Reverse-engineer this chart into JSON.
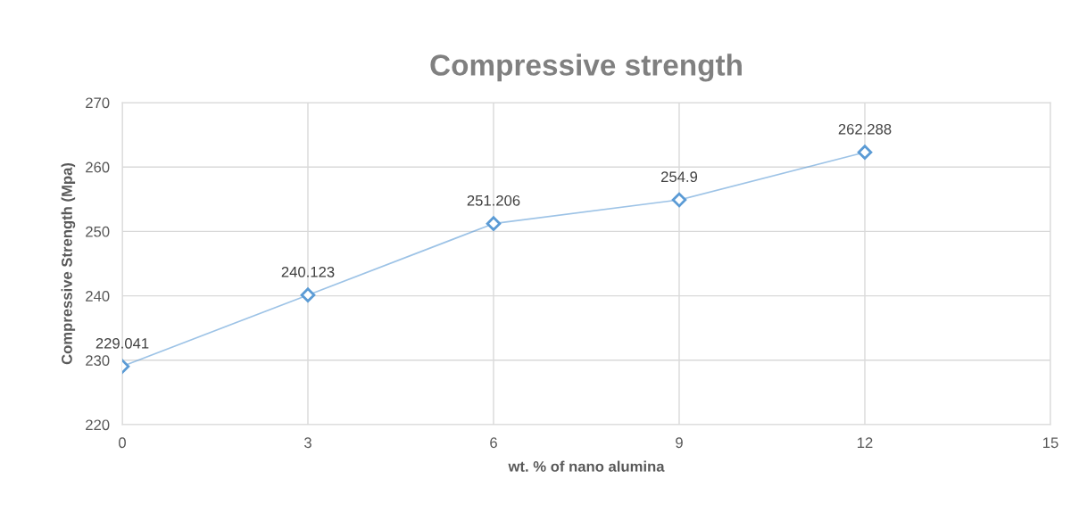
{
  "chart_data": {
    "type": "line",
    "title": "Compressive strength",
    "xlabel": "wt. % of nano alumina",
    "ylabel": "Compressive Strength (Mpa)",
    "x": [
      0,
      3,
      6,
      9,
      12
    ],
    "series": [
      {
        "color": "#5b9bd5",
        "values": [
          229.041,
          240.123,
          251.206,
          254.9,
          262.288
        ]
      }
    ],
    "xlim": [
      0,
      15
    ],
    "xticks": [
      0,
      3,
      6,
      9,
      12,
      15
    ],
    "ylim": [
      220,
      270
    ],
    "yticks": [
      220,
      230,
      240,
      250,
      260,
      270
    ],
    "grid": true,
    "marker": "diamond",
    "line_style": "solid",
    "data_labels": true
  }
}
